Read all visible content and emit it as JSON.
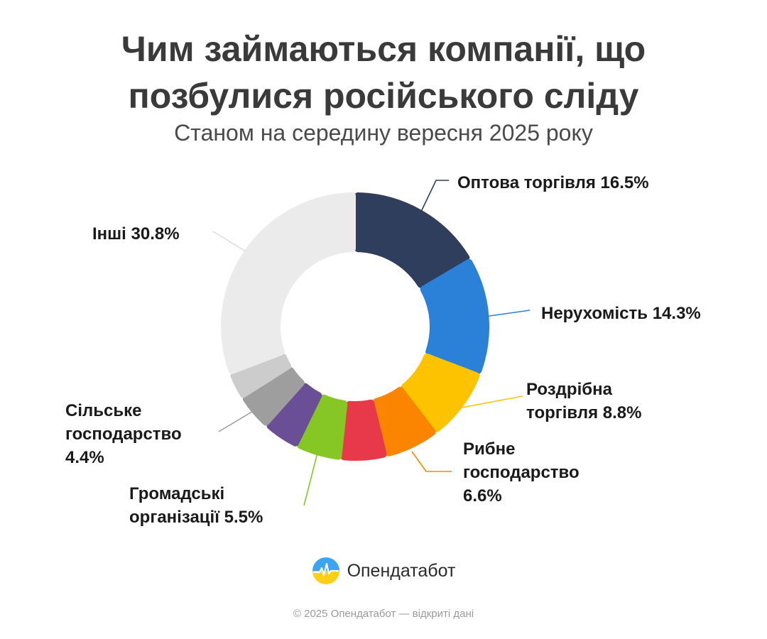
{
  "title": {
    "line1": "Чим займаються компанії, що",
    "line2": "позбулися російського сліду",
    "subtitle": "Станом на середину вересня 2025 року"
  },
  "chart_data": {
    "type": "pie",
    "title": "Чим займаються компанії, що позбулися російського сліду",
    "subtitle": "Станом на середину вересня 2025 року",
    "slices": [
      {
        "name": "Оптова торгівля",
        "value": 16.5,
        "color": "#2e3e5c",
        "label_lines": [
          "Оптова торгівля 16.5%"
        ]
      },
      {
        "name": "Нерухомість",
        "value": 14.3,
        "color": "#2b80d8",
        "label_lines": [
          "Нерухомість 14.3%"
        ]
      },
      {
        "name": "Роздрібна торгівля",
        "value": 8.8,
        "color": "#fdc300",
        "label_lines": [
          "Роздрібна",
          "торгівля 8.8%"
        ]
      },
      {
        "name": "Рибне господарство",
        "value": 6.6,
        "color": "#fb8500",
        "label_lines": [
          "Рибне",
          "господарство",
          "6.6%"
        ]
      },
      {
        "name": "",
        "value": 5.5,
        "color": "#e8394a",
        "label_lines": []
      },
      {
        "name": "Громадські організації",
        "value": 5.5,
        "color": "#86c625",
        "label_lines": [
          "Громадські",
          "організації 5.5%"
        ]
      },
      {
        "name": "",
        "value": 4.4,
        "color": "#6a4f96",
        "label_lines": []
      },
      {
        "name": "Сільське господарство",
        "value": 4.4,
        "color": "#9e9e9e",
        "label_lines": [
          "Сільське",
          "господарство",
          "4.4%"
        ]
      },
      {
        "name": "",
        "value": 3.2,
        "color": "#cccccc",
        "label_lines": []
      },
      {
        "name": "Інші",
        "value": 30.8,
        "color": "#ebebeb",
        "label_lines": [
          "Інші 30.8%"
        ]
      }
    ]
  },
  "brand": {
    "name": "Опендатабот",
    "logo_icon": "opendatabot-logo-icon"
  },
  "footer": {
    "text": "© 2025 Опендатабот — відкриті дані"
  }
}
